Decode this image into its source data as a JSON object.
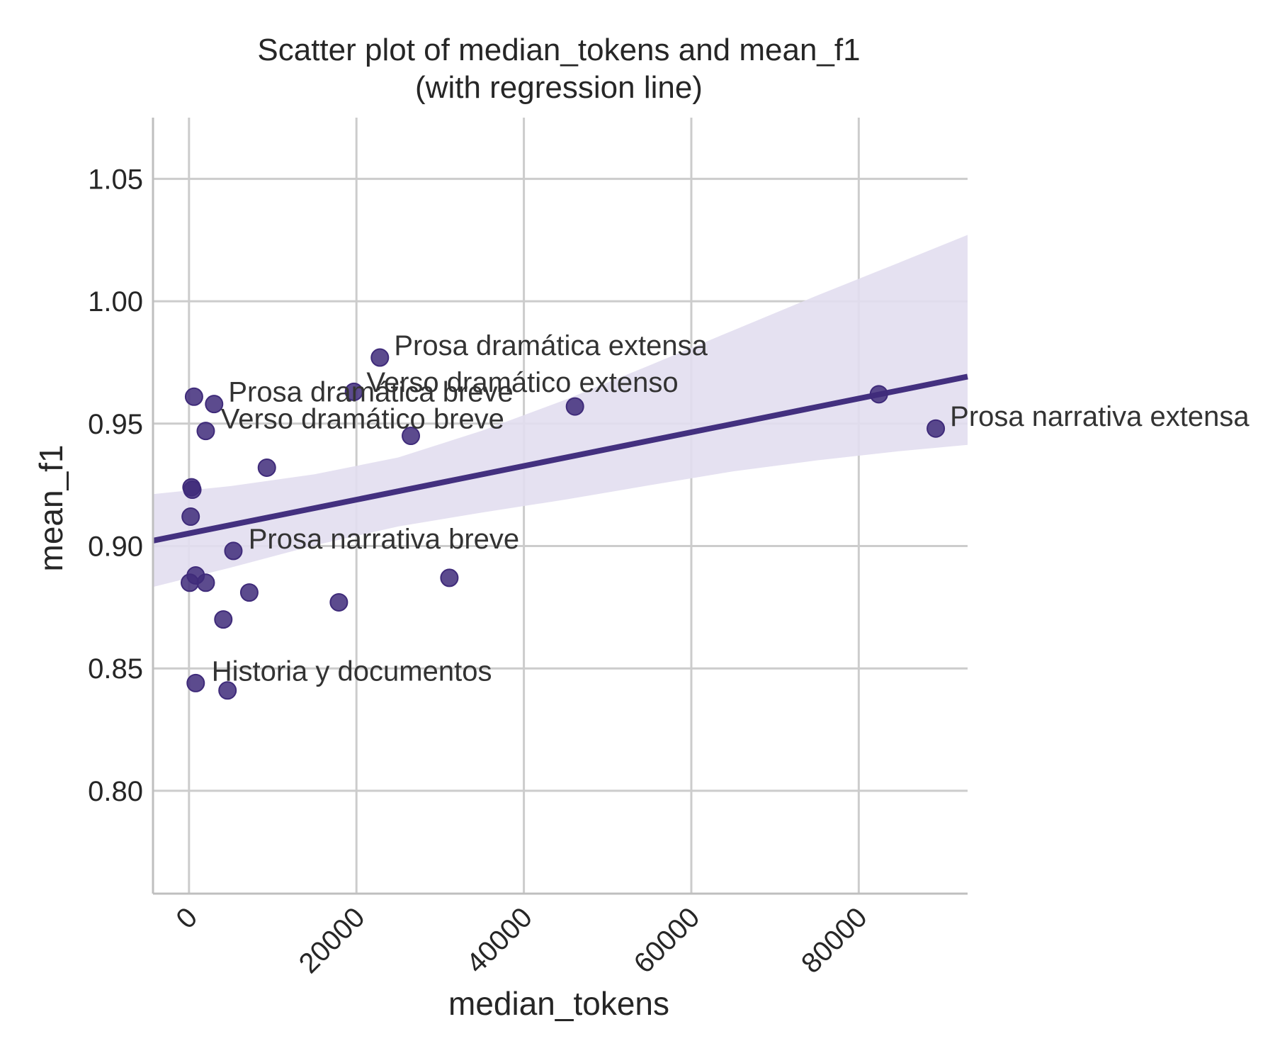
{
  "chart_data": {
    "type": "scatter",
    "title": "Scatter plot of median_tokens and mean_f1",
    "subtitle": "(with regression line)",
    "xlabel": "median_tokens",
    "ylabel": "mean_f1",
    "xlim": [
      -4300,
      93000
    ],
    "ylim": [
      0.758,
      1.075
    ],
    "x_ticks": [
      0,
      20000,
      40000,
      60000,
      80000
    ],
    "x_tick_labels": [
      "0",
      "20000",
      "40000",
      "60000",
      "80000"
    ],
    "y_ticks": [
      0.8,
      0.85,
      0.9,
      0.95,
      1.0,
      1.05
    ],
    "y_tick_labels": [
      "0.80",
      "0.85",
      "0.90",
      "0.95",
      "1.00",
      "1.05"
    ],
    "grid": true,
    "colors": {
      "points": "#3f2b7a",
      "line": "#43307f",
      "band": "#e2def0",
      "grid": "#cccccc",
      "axis": "#bfbfbf"
    },
    "points": [
      {
        "x": 600,
        "y": 0.961
      },
      {
        "x": 3000,
        "y": 0.958
      },
      {
        "x": 2000,
        "y": 0.947
      },
      {
        "x": 300,
        "y": 0.924
      },
      {
        "x": 400,
        "y": 0.923
      },
      {
        "x": 200,
        "y": 0.912
      },
      {
        "x": 800,
        "y": 0.888
      },
      {
        "x": 100,
        "y": 0.885
      },
      {
        "x": 2000,
        "y": 0.885
      },
      {
        "x": 5300,
        "y": 0.898
      },
      {
        "x": 7200,
        "y": 0.881
      },
      {
        "x": 4100,
        "y": 0.87
      },
      {
        "x": 9300,
        "y": 0.932
      },
      {
        "x": 800,
        "y": 0.844
      },
      {
        "x": 4600,
        "y": 0.841
      },
      {
        "x": 17900,
        "y": 0.877
      },
      {
        "x": 19700,
        "y": 0.963
      },
      {
        "x": 22800,
        "y": 0.977
      },
      {
        "x": 26500,
        "y": 0.945
      },
      {
        "x": 31100,
        "y": 0.887
      },
      {
        "x": 46100,
        "y": 0.957
      },
      {
        "x": 82400,
        "y": 0.962
      },
      {
        "x": 89200,
        "y": 0.948
      }
    ],
    "annotations": [
      {
        "text": "Prosa dramática extensa",
        "x": 24500,
        "y": 0.978
      },
      {
        "text": "Verso dramático extenso",
        "x": 21200,
        "y": 0.963
      },
      {
        "text": "Prosa dramática breve",
        "x": 4700,
        "y": 0.959
      },
      {
        "text": "Verso dramático breve",
        "x": 3800,
        "y": 0.948
      },
      {
        "text": "Prosa narrativa extensa",
        "x": 90900,
        "y": 0.949
      },
      {
        "text": "Prosa narrativa breve",
        "x": 7100,
        "y": 0.899
      },
      {
        "text": "Historia y documentos",
        "x": 2700,
        "y": 0.845
      }
    ],
    "regression": {
      "x_start": -4300,
      "y_start": 0.9022,
      "x_end": 93000,
      "y_end": 0.9692
    },
    "confidence_band": {
      "x": [
        -4300,
        5000,
        15000,
        25000,
        35000,
        45000,
        55000,
        65000,
        75000,
        85000,
        93000
      ],
      "upper": [
        0.9212,
        0.9245,
        0.9293,
        0.9362,
        0.9471,
        0.9598,
        0.9738,
        0.9881,
        1.0023,
        1.016,
        1.0271
      ],
      "lower": [
        0.8833,
        0.8912,
        0.9003,
        0.908,
        0.9137,
        0.919,
        0.9248,
        0.9305,
        0.935,
        0.9388,
        0.9413
      ]
    }
  }
}
